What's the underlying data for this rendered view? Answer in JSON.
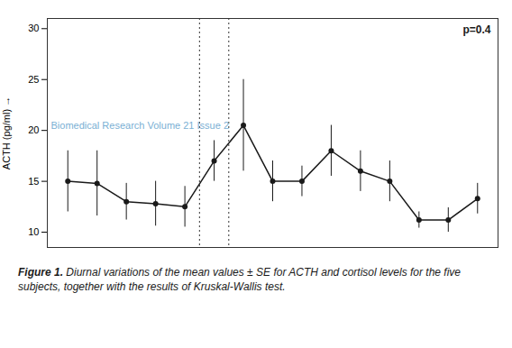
{
  "chart_data": {
    "type": "line",
    "x": [
      1,
      2,
      3,
      4,
      5,
      6,
      7,
      8,
      9,
      10,
      11,
      12,
      13,
      14,
      15
    ],
    "values": [
      15.0,
      14.8,
      13.0,
      12.8,
      12.5,
      17.0,
      20.5,
      15.0,
      15.0,
      18.0,
      16.0,
      15.0,
      11.2,
      11.2,
      13.3
    ],
    "yerr": [
      3.0,
      3.2,
      1.8,
      2.2,
      2.0,
      2.0,
      4.5,
      2.0,
      1.5,
      2.5,
      2.0,
      2.0,
      0.8,
      1.2,
      1.5
    ],
    "color": "#1a1a1a",
    "marker": "circle",
    "line_style": "solid",
    "vlines": [
      5.5,
      6.5
    ],
    "xlim": [
      0.3,
      15.7
    ],
    "ylim": [
      8.5,
      31
    ],
    "yticks": [
      10,
      15,
      20,
      25,
      30
    ],
    "ylabel": "ACTH (pg/ml)",
    "tick_labels": "y",
    "grid": false,
    "annotations": [
      {
        "text": "p=0.4"
      },
      {
        "text": "Biomedical Research Volume 21 Issue 2",
        "color": "#7ab0d4"
      }
    ],
    "caption": {
      "label": "Figure 1.",
      "text": "Diurnal variations of the mean values ± SE for ACTH and cortisol levels for the five subjects, together with the results of Kruskal-Wallis test."
    }
  }
}
